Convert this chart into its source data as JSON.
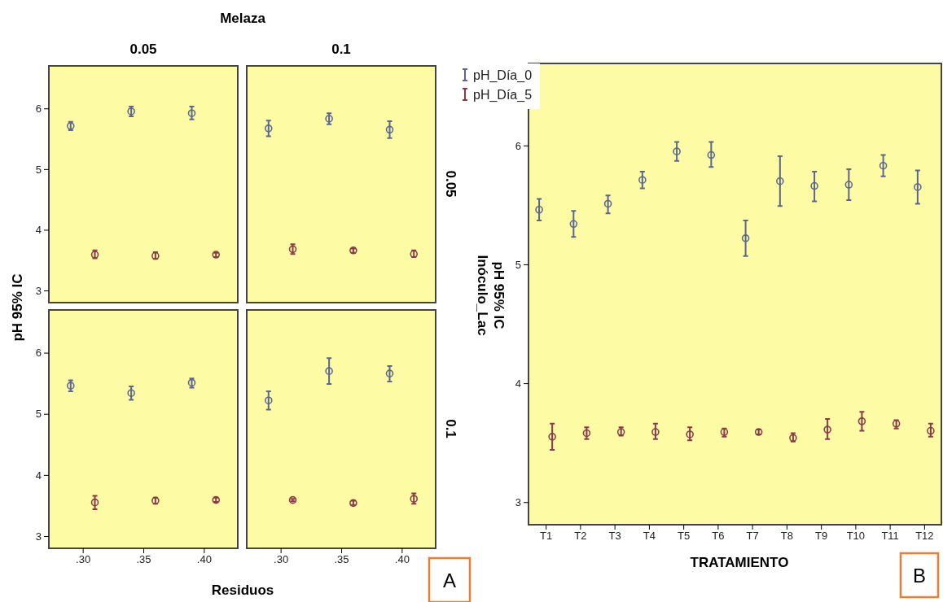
{
  "chart_data": [
    {
      "type": "scatter",
      "title": "0.05",
      "annotations": [
        "Melaza"
      ],
      "ylabel": "pH 95% IC",
      "xlim": [
        0.272,
        0.428
      ],
      "ylim": [
        2.8,
        6.7
      ],
      "yticks": [
        3,
        4,
        5,
        6
      ],
      "tick_labels": "y",
      "marker": "circle",
      "series": [
        {
          "color": "#5b6791",
          "x": [
            0.29,
            0.34,
            0.39
          ],
          "values": [
            5.71,
            5.95,
            5.92
          ],
          "errors": [
            [
              5.64,
              5.78
            ],
            [
              5.87,
              6.03
            ],
            [
              5.82,
              6.03
            ]
          ]
        },
        {
          "color": "#8a3a4a",
          "x": [
            0.31,
            0.36,
            0.41
          ],
          "values": [
            3.59,
            3.57,
            3.59
          ],
          "errors": [
            [
              3.53,
              3.66
            ],
            [
              3.52,
              3.63
            ],
            [
              3.55,
              3.62
            ]
          ]
        }
      ]
    },
    {
      "type": "scatter",
      "title": "0.1",
      "y2label": "0.05",
      "xlim": [
        0.272,
        0.428
      ],
      "ylim": [
        2.8,
        6.7
      ],
      "marker": "circle",
      "series": [
        {
          "color": "#5b6791",
          "x": [
            0.29,
            0.34,
            0.39
          ],
          "values": [
            5.67,
            5.83,
            5.65
          ],
          "errors": [
            [
              5.54,
              5.8
            ],
            [
              5.74,
              5.92
            ],
            [
              5.51,
              5.79
            ]
          ]
        },
        {
          "color": "#8a3a4a",
          "x": [
            0.31,
            0.36,
            0.41
          ],
          "values": [
            3.68,
            3.66,
            3.6
          ],
          "errors": [
            [
              3.6,
              3.76
            ],
            [
              3.62,
              3.69
            ],
            [
              3.55,
              3.66
            ]
          ]
        }
      ]
    },
    {
      "type": "scatter",
      "xlabel": "Residuos",
      "annotations": [
        "A"
      ],
      "xlim": [
        0.272,
        0.428
      ],
      "xticks": [
        {
          "value": 0.3,
          "label": ".30"
        },
        {
          "value": 0.35,
          "label": ".35"
        },
        {
          "value": 0.4,
          "label": ".40"
        }
      ],
      "ylim": [
        2.8,
        6.7
      ],
      "yticks": [
        3,
        4,
        5,
        6
      ],
      "marker": "circle",
      "series": [
        {
          "color": "#5b6791",
          "x": [
            0.29,
            0.34,
            0.39
          ],
          "values": [
            5.46,
            5.34,
            5.51
          ],
          "errors": [
            [
              5.37,
              5.55
            ],
            [
              5.23,
              5.45
            ],
            [
              5.43,
              5.58
            ]
          ]
        },
        {
          "color": "#8a3a4a",
          "x": [
            0.31,
            0.36,
            0.41
          ],
          "values": [
            3.55,
            3.58,
            3.59
          ],
          "errors": [
            [
              3.44,
              3.66
            ],
            [
              3.53,
              3.63
            ],
            [
              3.56,
              3.63
            ]
          ]
        }
      ]
    },
    {
      "type": "scatter",
      "y2label": "0.1",
      "xlim": [
        0.272,
        0.428
      ],
      "xticks": [
        {
          "value": 0.3,
          "label": ".30"
        },
        {
          "value": 0.35,
          "label": ".35"
        },
        {
          "value": 0.4,
          "label": ".40"
        }
      ],
      "ylim": [
        2.8,
        6.7
      ],
      "tick_labels": "x",
      "marker": "circle",
      "series": [
        {
          "color": "#5b6791",
          "x": [
            0.29,
            0.34,
            0.39
          ],
          "values": [
            5.22,
            5.7,
            5.66
          ],
          "errors": [
            [
              5.07,
              5.37
            ],
            [
              5.49,
              5.91
            ],
            [
              5.53,
              5.78
            ]
          ]
        },
        {
          "color": "#8a3a4a",
          "x": [
            0.31,
            0.36,
            0.41
          ],
          "values": [
            3.59,
            3.54,
            3.61
          ],
          "errors": [
            [
              3.57,
              3.61
            ],
            [
              3.51,
              3.58
            ],
            [
              3.53,
              3.7
            ]
          ]
        }
      ]
    },
    {
      "type": "scatter",
      "xlabel": "TRATAMIENTO",
      "ylabel": "pH 95% IC\nInóculo_Lac",
      "annotations": [
        "B"
      ],
      "categories": [
        "T1",
        "T2",
        "T3",
        "T4",
        "T5",
        "T6",
        "T7",
        "T8",
        "T9",
        "T10",
        "T11",
        "T12"
      ],
      "ylim": [
        2.81,
        6.69
      ],
      "yticks": [
        3,
        4,
        5,
        6
      ],
      "marker": "circle",
      "legend": "top left",
      "series": [
        {
          "name": "pH_Día_0",
          "color": "#5b6791",
          "values": [
            5.46,
            5.34,
            5.51,
            5.71,
            5.95,
            5.92,
            5.22,
            5.7,
            5.66,
            5.67,
            5.83,
            5.65
          ],
          "errors": [
            [
              5.37,
              5.55
            ],
            [
              5.23,
              5.45
            ],
            [
              5.43,
              5.58
            ],
            [
              5.64,
              5.78
            ],
            [
              5.87,
              6.03
            ],
            [
              5.82,
              6.03
            ],
            [
              5.07,
              5.37
            ],
            [
              5.49,
              5.91
            ],
            [
              5.53,
              5.78
            ],
            [
              5.54,
              5.8
            ],
            [
              5.74,
              5.92
            ],
            [
              5.51,
              5.79
            ]
          ]
        },
        {
          "name": "pH_Día_5",
          "color": "#8a3a4a",
          "values": [
            3.55,
            3.58,
            3.59,
            3.59,
            3.57,
            3.59,
            3.59,
            3.54,
            3.61,
            3.68,
            3.66,
            3.6
          ],
          "errors": [
            [
              3.44,
              3.66
            ],
            [
              3.53,
              3.63
            ],
            [
              3.56,
              3.63
            ],
            [
              3.53,
              3.66
            ],
            [
              3.52,
              3.63
            ],
            [
              3.55,
              3.62
            ],
            [
              3.57,
              3.61
            ],
            [
              3.51,
              3.58
            ],
            [
              3.53,
              3.7
            ],
            [
              3.6,
              3.76
            ],
            [
              3.62,
              3.69
            ],
            [
              3.55,
              3.66
            ]
          ]
        }
      ]
    }
  ]
}
